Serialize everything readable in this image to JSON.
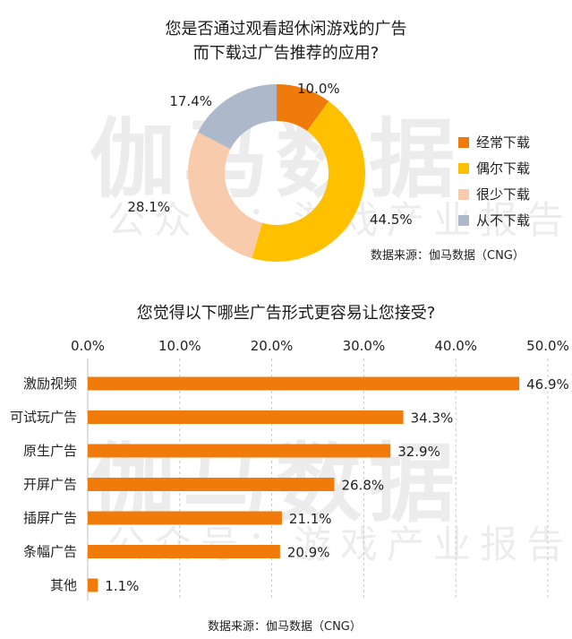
{
  "watermark": {
    "main": "伽马数据",
    "sub": "公众号：游戏产业报告"
  },
  "donut": {
    "title_line1": "您是否通过观看超休闲游戏的广告",
    "title_line2": "而下载过广告推荐的应用?",
    "source": "数据来源：伽马数据（CNG）"
  },
  "bars": {
    "title": "您觉得以下哪些广告形式更容易让您接受?",
    "source": "数据来源：伽马数据（CNG）"
  },
  "chart_data": [
    {
      "type": "pie",
      "title": "您是否通过观看超休闲游戏的广告而下载过广告推荐的应用?",
      "labels": [
        "经常下载",
        "偶尔下载",
        "很少下载",
        "从不下载"
      ],
      "values": [
        10.0,
        44.5,
        28.1,
        17.4
      ],
      "value_labels": [
        "10.0%",
        "44.5%",
        "28.1%",
        "17.4%"
      ],
      "colors": [
        "#f07a0a",
        "#ffc000",
        "#f7cbac",
        "#adb9ca"
      ],
      "legend": "right"
    },
    {
      "type": "bar",
      "orientation": "horizontal",
      "title": "您觉得以下哪些广告形式更容易让您接受?",
      "categories": [
        "激励视频",
        "可试玩广告",
        "原生广告",
        "开屏广告",
        "插屏广告",
        "条幅广告",
        "其他"
      ],
      "values": [
        46.9,
        34.3,
        32.9,
        26.8,
        21.1,
        20.9,
        1.1
      ],
      "value_labels": [
        "46.9%",
        "34.3%",
        "32.9%",
        "26.8%",
        "21.1%",
        "20.9%",
        "1.1%"
      ],
      "xlim": [
        0,
        50
      ],
      "ticks": [
        "0.0%",
        "10.0%",
        "20.0%",
        "30.0%",
        "40.0%",
        "50.0%"
      ],
      "tick_values": [
        0,
        10,
        20,
        30,
        40,
        50
      ],
      "axis_position": "top",
      "color": "#f07a0a",
      "grid": true
    }
  ]
}
